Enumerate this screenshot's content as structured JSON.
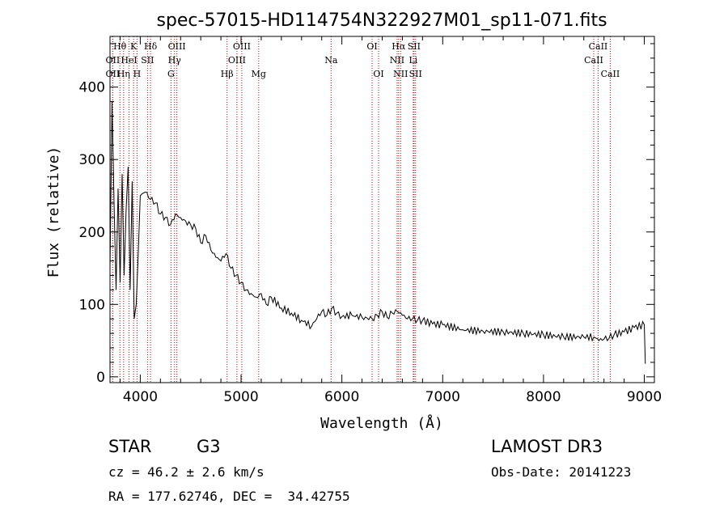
{
  "chart_data": {
    "type": "line",
    "title": "spec-57015-HD114754N322927M01_sp11-071.fits",
    "xlabel": "Wavelength (Å)",
    "ylabel": "Flux (relative)",
    "xlim": [
      3700,
      9100
    ],
    "ylim": [
      -8,
      470
    ],
    "xticks": [
      4000,
      5000,
      6000,
      7000,
      8000,
      9000
    ],
    "yticks": [
      0,
      100,
      200,
      300,
      400
    ],
    "grid": false,
    "series": [
      {
        "name": "spectrum",
        "x": [
          3700,
          3720,
          3740,
          3760,
          3780,
          3800,
          3820,
          3840,
          3860,
          3880,
          3900,
          3920,
          3940,
          3960,
          3980,
          4000,
          4050,
          4100,
          4150,
          4200,
          4250,
          4300,
          4350,
          4400,
          4450,
          4500,
          4550,
          4600,
          4650,
          4700,
          4750,
          4800,
          4850,
          4900,
          4950,
          5000,
          5050,
          5100,
          5150,
          5200,
          5250,
          5300,
          5400,
          5500,
          5600,
          5700,
          5750,
          5800,
          5850,
          5900,
          5950,
          6000,
          6100,
          6200,
          6300,
          6350,
          6400,
          6450,
          6500,
          6550,
          6600,
          6650,
          6700,
          6750,
          6800,
          6900,
          7000,
          7200,
          7400,
          7600,
          7800,
          8000,
          8200,
          8400,
          8500,
          8550,
          8600,
          8650,
          8700,
          8800,
          8900,
          9000,
          9010
        ],
        "y": [
          150,
          380,
          240,
          120,
          260,
          130,
          280,
          140,
          230,
          290,
          120,
          270,
          80,
          100,
          170,
          250,
          255,
          245,
          240,
          225,
          220,
          210,
          225,
          220,
          215,
          210,
          205,
          185,
          195,
          175,
          165,
          160,
          170,
          150,
          140,
          130,
          120,
          115,
          110,
          115,
          100,
          110,
          95,
          88,
          78,
          70,
          80,
          90,
          85,
          95,
          88,
          83,
          85,
          82,
          80,
          85,
          90,
          82,
          88,
          90,
          85,
          80,
          80,
          78,
          78,
          73,
          72,
          65,
          63,
          62,
          60,
          58,
          55,
          55,
          55,
          50,
          52,
          53,
          58,
          62,
          68,
          72,
          18
        ]
      }
    ],
    "line_annotations": [
      {
        "label": "Hθ",
        "wavelength": 3798,
        "row": 0
      },
      {
        "label": "OII",
        "wavelength": 3727,
        "row": 1
      },
      {
        "label": "OII",
        "wavelength": 3727,
        "row": 2
      },
      {
        "label": "K",
        "wavelength": 3934,
        "row": 0
      },
      {
        "label": "HeI",
        "wavelength": 3889,
        "row": 1
      },
      {
        "label": "Hη",
        "wavelength": 3835,
        "row": 2
      },
      {
        "label": "Hδ",
        "wavelength": 4102,
        "row": 0
      },
      {
        "label": "SII",
        "wavelength": 4072,
        "row": 1
      },
      {
        "label": "H",
        "wavelength": 3968,
        "row": 2
      },
      {
        "label": "OIII",
        "wavelength": 4363,
        "row": 0
      },
      {
        "label": "Hγ",
        "wavelength": 4340,
        "row": 1
      },
      {
        "label": "G",
        "wavelength": 4305,
        "row": 2
      },
      {
        "label": "OIII",
        "wavelength": 5007,
        "row": 0
      },
      {
        "label": "OIII",
        "wavelength": 4959,
        "row": 1
      },
      {
        "label": "Hβ",
        "wavelength": 4861,
        "row": 2
      },
      {
        "label": "Mg",
        "wavelength": 5175,
        "row": 2
      },
      {
        "label": "Na",
        "wavelength": 5893,
        "row": 1
      },
      {
        "label": "OI",
        "wavelength": 6300,
        "row": 0
      },
      {
        "label": "OI",
        "wavelength": 6364,
        "row": 2
      },
      {
        "label": "Hα",
        "wavelength": 6563,
        "row": 0
      },
      {
        "label": "SII",
        "wavelength": 6716,
        "row": 0
      },
      {
        "label": "NII",
        "wavelength": 6548,
        "row": 1
      },
      {
        "label": "Li",
        "wavelength": 6708,
        "row": 1
      },
      {
        "label": "NII",
        "wavelength": 6583,
        "row": 2
      },
      {
        "label": "SII",
        "wavelength": 6731,
        "row": 2
      },
      {
        "label": "CaII",
        "wavelength": 8542,
        "row": 0
      },
      {
        "label": "CaII",
        "wavelength": 8498,
        "row": 1
      },
      {
        "label": "CaII",
        "wavelength": 8662,
        "row": 2
      }
    ],
    "colors": {
      "spectrum": "#000000",
      "line_marker": "#cc0000"
    }
  },
  "info": {
    "object_class": "STAR",
    "subclass": "G3",
    "survey": "LAMOST DR3",
    "redshift": "cz = 46.2 ± 2.6 km/s",
    "obs_date": "Obs-Date: 20141223",
    "coords": "RA = 177.62746, DEC =  34.42755"
  }
}
